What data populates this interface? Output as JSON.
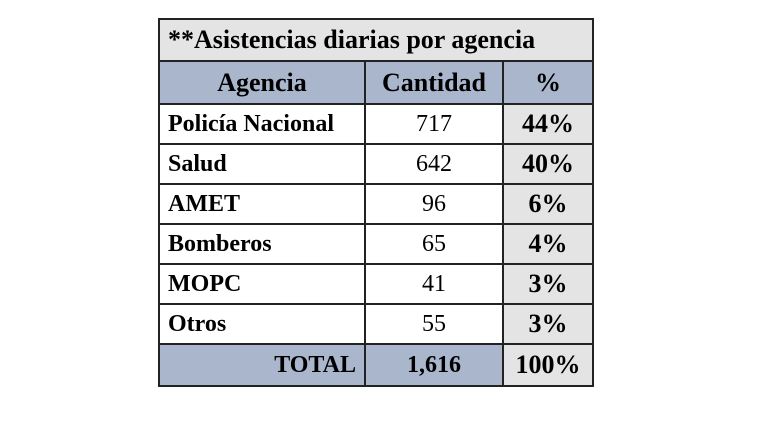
{
  "table": {
    "title": "**Asistencias diarias por agencia",
    "headers": {
      "agency": "Agencia",
      "quantity": "Cantidad",
      "percent": "%"
    },
    "rows": [
      {
        "agency": "Policía Nacional",
        "quantity": "717",
        "percent": "44%"
      },
      {
        "agency": "Salud",
        "quantity": "642",
        "percent": "40%"
      },
      {
        "agency": "AMET",
        "quantity": "96",
        "percent": "6%"
      },
      {
        "agency": "Bomberos",
        "quantity": "65",
        "percent": "4%"
      },
      {
        "agency": "MOPC",
        "quantity": "41",
        "percent": "3%"
      },
      {
        "agency": "Otros",
        "quantity": "55",
        "percent": "3%"
      }
    ],
    "total": {
      "label": "TOTAL",
      "quantity": "1,616",
      "percent": "100%"
    }
  },
  "colors": {
    "header_fill": "#a9b6cc",
    "title_fill": "#e4e4e4",
    "percent_fill": "#e4e4e4",
    "border": "#222222"
  }
}
